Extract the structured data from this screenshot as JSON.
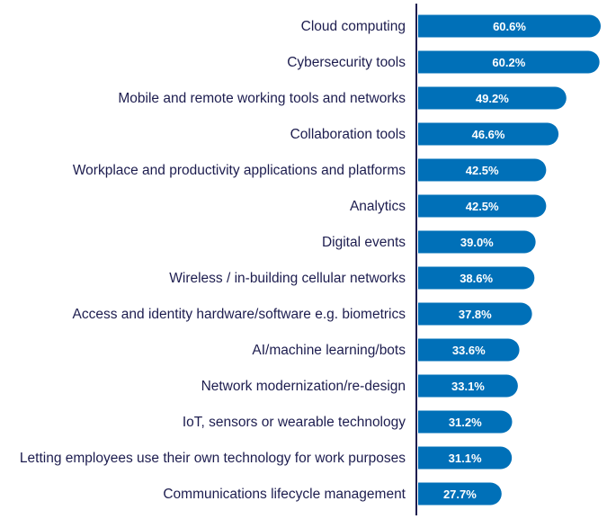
{
  "chart_data": {
    "type": "bar",
    "orientation": "horizontal",
    "categories": [
      "Cloud computing",
      "Cybersecurity tools",
      "Mobile and remote working tools and networks",
      "Collaboration tools",
      "Workplace and productivity applications and platforms",
      "Analytics",
      "Digital events",
      "Wireless / in-building cellular networks",
      "Access and identity hardware/software e.g. biometrics",
      "AI/machine learning/bots",
      "Network modernization/re-design",
      "IoT, sensors or wearable technology",
      "Letting employees use their own technology for work purposes",
      "Communications lifecycle management"
    ],
    "values": [
      60.6,
      60.2,
      49.2,
      46.6,
      42.5,
      42.5,
      39.0,
      38.6,
      37.8,
      33.6,
      33.1,
      31.2,
      31.1,
      27.7
    ],
    "value_labels": [
      "60.6%",
      "60.2%",
      "49.2%",
      "46.6%",
      "42.5%",
      "42.5%",
      "39.0%",
      "38.6%",
      "37.8%",
      "33.6%",
      "33.1%",
      "31.2%",
      "31.1%",
      "27.7%"
    ],
    "title": "",
    "xlabel": "",
    "ylabel": "",
    "xlim": [
      0,
      61
    ],
    "grid": false,
    "legend": "none",
    "bar_color": "#0070b8",
    "axis_color": "#1d1d4f",
    "label_color": "#1d1d4f"
  }
}
